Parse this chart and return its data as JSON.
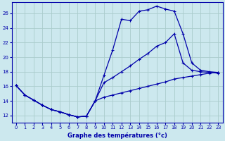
{
  "xlabel": "Graphe des températures (°c)",
  "bg_color": "#cce8ee",
  "grid_color": "#aacccc",
  "line_color": "#0000aa",
  "x_ticks": [
    0,
    1,
    2,
    3,
    4,
    5,
    6,
    7,
    8,
    9,
    10,
    11,
    12,
    13,
    14,
    15,
    16,
    17,
    18,
    19,
    20,
    21,
    22,
    23
  ],
  "y_ticks": [
    12,
    14,
    16,
    18,
    20,
    22,
    24,
    26
  ],
  "xlim": [
    -0.5,
    23.5
  ],
  "ylim": [
    11.0,
    27.5
  ],
  "line1_x": [
    0,
    1,
    2,
    3,
    4,
    5,
    6,
    7,
    8,
    9,
    10,
    11,
    12,
    13,
    14,
    15,
    16,
    17,
    18,
    19,
    20,
    21,
    22,
    23
  ],
  "line1_y": [
    16.1,
    14.8,
    14.1,
    13.4,
    12.8,
    12.5,
    12.1,
    11.8,
    11.9,
    14.0,
    17.5,
    21.0,
    25.2,
    25.0,
    26.3,
    26.5,
    27.0,
    26.6,
    26.3,
    23.2,
    19.2,
    18.2,
    18.0,
    17.9
  ],
  "line2_x": [
    0,
    1,
    2,
    3,
    4,
    5,
    6,
    7,
    8,
    9,
    10,
    11,
    12,
    13,
    14,
    15,
    16,
    17,
    18,
    19,
    20,
    21,
    22,
    23
  ],
  "line2_y": [
    16.1,
    14.8,
    14.1,
    13.4,
    12.8,
    12.5,
    12.1,
    11.8,
    11.9,
    14.0,
    16.5,
    17.2,
    18.0,
    18.8,
    19.7,
    20.5,
    21.5,
    22.0,
    23.2,
    19.2,
    18.2,
    18.0,
    17.9,
    17.8
  ],
  "line3_x": [
    0,
    1,
    2,
    3,
    4,
    5,
    6,
    7,
    8,
    9,
    10,
    11,
    12,
    13,
    14,
    15,
    16,
    17,
    18,
    19,
    20,
    21,
    22,
    23
  ],
  "line3_y": [
    16.1,
    14.8,
    14.1,
    13.4,
    12.8,
    12.5,
    12.1,
    11.8,
    11.9,
    14.0,
    14.5,
    14.8,
    15.1,
    15.4,
    15.7,
    16.0,
    16.3,
    16.6,
    17.0,
    17.2,
    17.4,
    17.6,
    17.8,
    17.9
  ]
}
